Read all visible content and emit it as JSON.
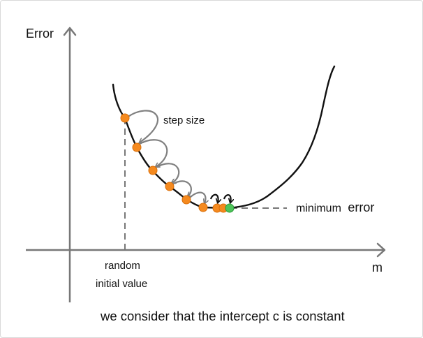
{
  "diagram": {
    "y_axis_label": "Error",
    "x_axis_label": "m",
    "step_label": "step size",
    "start_label_line1": "random",
    "start_label_line2": "initial value",
    "min_label_word1": "minimum",
    "min_label_word2": "error",
    "caption": "we consider that the intercept c is constant"
  },
  "colors": {
    "axis": "#777777",
    "curve": "#111111",
    "step_point": "#f58a1f",
    "minimum_point": "#4ec45a",
    "arrow_gray": "#808080",
    "arrow_dark": "#111111",
    "dashed": "#777777"
  }
}
